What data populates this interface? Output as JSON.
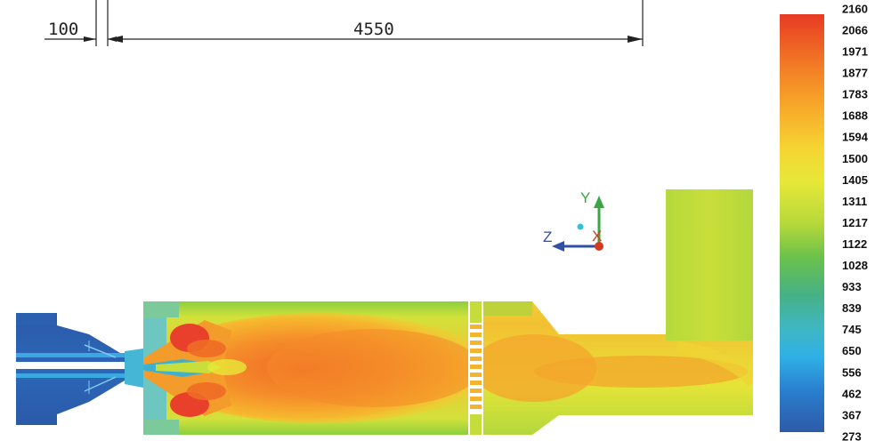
{
  "dimensions": {
    "left_label": "100",
    "main_label": "4550"
  },
  "axes_triad": {
    "y_label": "Y",
    "z_label": "Z",
    "x_label": "X",
    "colors": {
      "y": "#3aa646",
      "z": "#2f4fa8",
      "x": "#d43a1e",
      "origin": "#35c0d8"
    }
  },
  "legend": {
    "values": [
      "2160",
      "2066",
      "1971",
      "1877",
      "1783",
      "1688",
      "1594",
      "1500",
      "1405",
      "1311",
      "1217",
      "1122",
      "1028",
      "933",
      "839",
      "745",
      "650",
      "556",
      "462",
      "367",
      "273"
    ],
    "min": 273,
    "max": 2160,
    "gradient_colors": [
      "#e83a24",
      "#f27a25",
      "#f7a82a",
      "#f6d432",
      "#e7e838",
      "#b7d93a",
      "#6cc24a",
      "#46b184",
      "#3fb7c2",
      "#2fb0e6",
      "#2a7fcf",
      "#2d5aa8"
    ]
  }
}
